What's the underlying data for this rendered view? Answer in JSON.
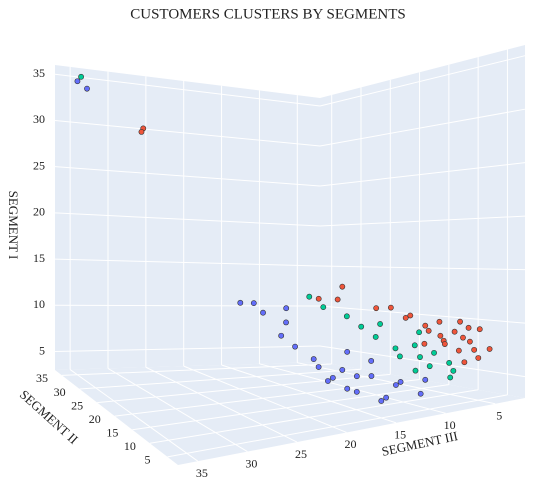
{
  "chart_data": {
    "type": "scatter3d",
    "title": "CUSTOMERS CLUSTERS BY SEGMENTS",
    "xlabel": "SEGMENT III",
    "ylabel": "SEGMENT II",
    "zlabel": "SEGMENT I",
    "xlim": [
      2,
      37
    ],
    "ylim": [
      2,
      37
    ],
    "zlim": [
      3,
      36
    ],
    "xticks": [
      5,
      10,
      15,
      20,
      25,
      30,
      35
    ],
    "yticks": [
      5,
      10,
      15,
      20,
      25,
      30,
      35
    ],
    "zticks": [
      5,
      10,
      15,
      20,
      25,
      30,
      35
    ],
    "grid": true,
    "series": [
      {
        "color": "#636efa",
        "x": [
          14,
          16,
          18,
          20,
          15,
          17,
          19,
          21,
          22,
          13,
          12,
          16,
          18,
          20,
          23,
          24,
          22,
          21,
          25,
          15,
          17,
          19,
          11,
          26,
          35,
          34
        ],
        "y": [
          4,
          5,
          4,
          6,
          7,
          8,
          5,
          7,
          9,
          5,
          3,
          3,
          6,
          8,
          10,
          12,
          11,
          13,
          12,
          4,
          6,
          7,
          4,
          13,
          35,
          34.5
        ],
        "z": [
          6,
          7,
          6,
          7,
          8,
          9,
          8,
          9,
          10,
          6,
          5,
          5,
          6,
          8,
          11,
          13,
          12,
          13,
          14,
          5,
          7,
          7,
          6,
          14,
          34.5,
          33.8
        ]
      },
      {
        "color": "#00cc96",
        "x": [
          9,
          10,
          11,
          8,
          12,
          13,
          10,
          9,
          11,
          12,
          7,
          14,
          15,
          16,
          13,
          18,
          19,
          35
        ],
        "y": [
          6,
          5,
          6,
          5,
          7,
          6,
          7,
          3,
          5,
          4,
          6,
          8,
          9,
          10,
          9,
          11,
          12,
          34
        ],
        "z": [
          8,
          7,
          9,
          7,
          8,
          9,
          10,
          6,
          8,
          7,
          6,
          10,
          11,
          12,
          11,
          13,
          14,
          35
        ]
      },
      {
        "color": "#ef553b",
        "x": [
          6,
          7,
          5,
          8,
          6,
          9,
          7,
          10,
          8,
          6,
          11,
          9,
          12,
          7,
          5,
          10,
          13,
          8,
          6,
          9,
          14,
          18,
          17,
          19,
          15,
          27,
          27.5
        ],
        "y": [
          4,
          3,
          5,
          4,
          6,
          5,
          5,
          3,
          6,
          3,
          4,
          7,
          5,
          4,
          3,
          6,
          4,
          3,
          5,
          4,
          5,
          8,
          9,
          10,
          6,
          34,
          33.5
        ],
        "z": [
          8,
          9,
          7,
          10,
          9,
          11,
          8,
          10,
          9,
          10,
          11,
          10,
          12,
          7,
          8,
          9,
          12,
          11,
          10,
          9,
          13,
          14,
          15,
          14,
          13,
          30,
          29.6
        ]
      }
    ]
  }
}
